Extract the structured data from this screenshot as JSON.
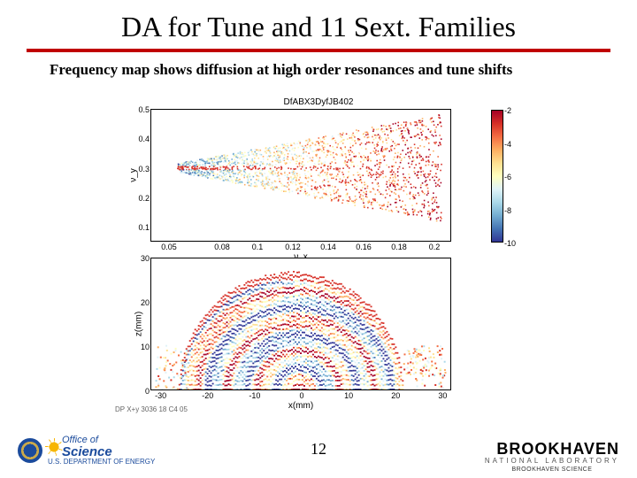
{
  "title": "DA for Tune and 11 Sext. Families",
  "subtitle": "Frequency map shows diffusion at high order resonances and tune shifts",
  "suptitle": "DfABX3DyfJB402",
  "page_number": "12",
  "chart_top": {
    "type": "scatter",
    "ylabel": "ν_y",
    "xlabel": "ν_x",
    "yticks": [
      {
        "v": 0.5,
        "t": "0.5"
      },
      {
        "v": 0.4,
        "t": "0.4"
      },
      {
        "v": 0.3,
        "t": "0.3"
      },
      {
        "v": 0.2,
        "t": "0.2"
      },
      {
        "v": 0.1,
        "t": "0.1"
      }
    ],
    "ylim": [
      0.05,
      0.5
    ],
    "xticks": [
      {
        "v": 0.05,
        "t": "0.05"
      },
      {
        "v": 0.08,
        "t": "0.08"
      },
      {
        "v": 0.1,
        "t": "0.1"
      },
      {
        "v": 0.12,
        "t": "0.12"
      },
      {
        "v": 0.14,
        "t": "0.14"
      },
      {
        "v": 0.16,
        "t": "0.16"
      },
      {
        "v": 0.18,
        "t": "0.18"
      },
      {
        "v": 0.2,
        "t": "0.2"
      }
    ],
    "xlim": [
      0.04,
      0.21
    ],
    "colorbar": {
      "min": -10,
      "max": -2,
      "ticks": [
        -2,
        -4,
        -6,
        -8,
        -10
      ]
    }
  },
  "chart_bottom": {
    "type": "image",
    "ylabel": "z(mm)",
    "xlabel": "x(mm)",
    "yticks": [
      {
        "v": 30,
        "t": "30"
      },
      {
        "v": 20,
        "t": "20"
      },
      {
        "v": 10,
        "t": "10"
      },
      {
        "v": 0,
        "t": "0"
      }
    ],
    "ylim": [
      0,
      30
    ],
    "xticks": [
      {
        "v": -30,
        "t": "-30"
      },
      {
        "v": -20,
        "t": "-20"
      },
      {
        "v": -10,
        "t": "-10"
      },
      {
        "v": 0,
        "t": "0"
      },
      {
        "v": 10,
        "t": "10"
      },
      {
        "v": 20,
        "t": "20"
      },
      {
        "v": 30,
        "t": "30"
      }
    ],
    "xlim": [
      -32,
      32
    ]
  },
  "tiny_note": "DP X+y 3036 18 C4 05",
  "palette": [
    "#313695",
    "#4575b4",
    "#74add1",
    "#abd9e9",
    "#e0f3f8",
    "#ffffbf",
    "#fee090",
    "#fdae61",
    "#f46d43",
    "#d73027",
    "#a50026"
  ],
  "footer": {
    "office": {
      "small": "U.S. DEPARTMENT OF ENERGY",
      "of": "Office of",
      "big": "Science"
    },
    "bnl": {
      "big": "BROOKHAVEN",
      "mid": "NATIONAL LABORATORY",
      "sub": "BROOKHAVEN SCIENCE"
    }
  }
}
